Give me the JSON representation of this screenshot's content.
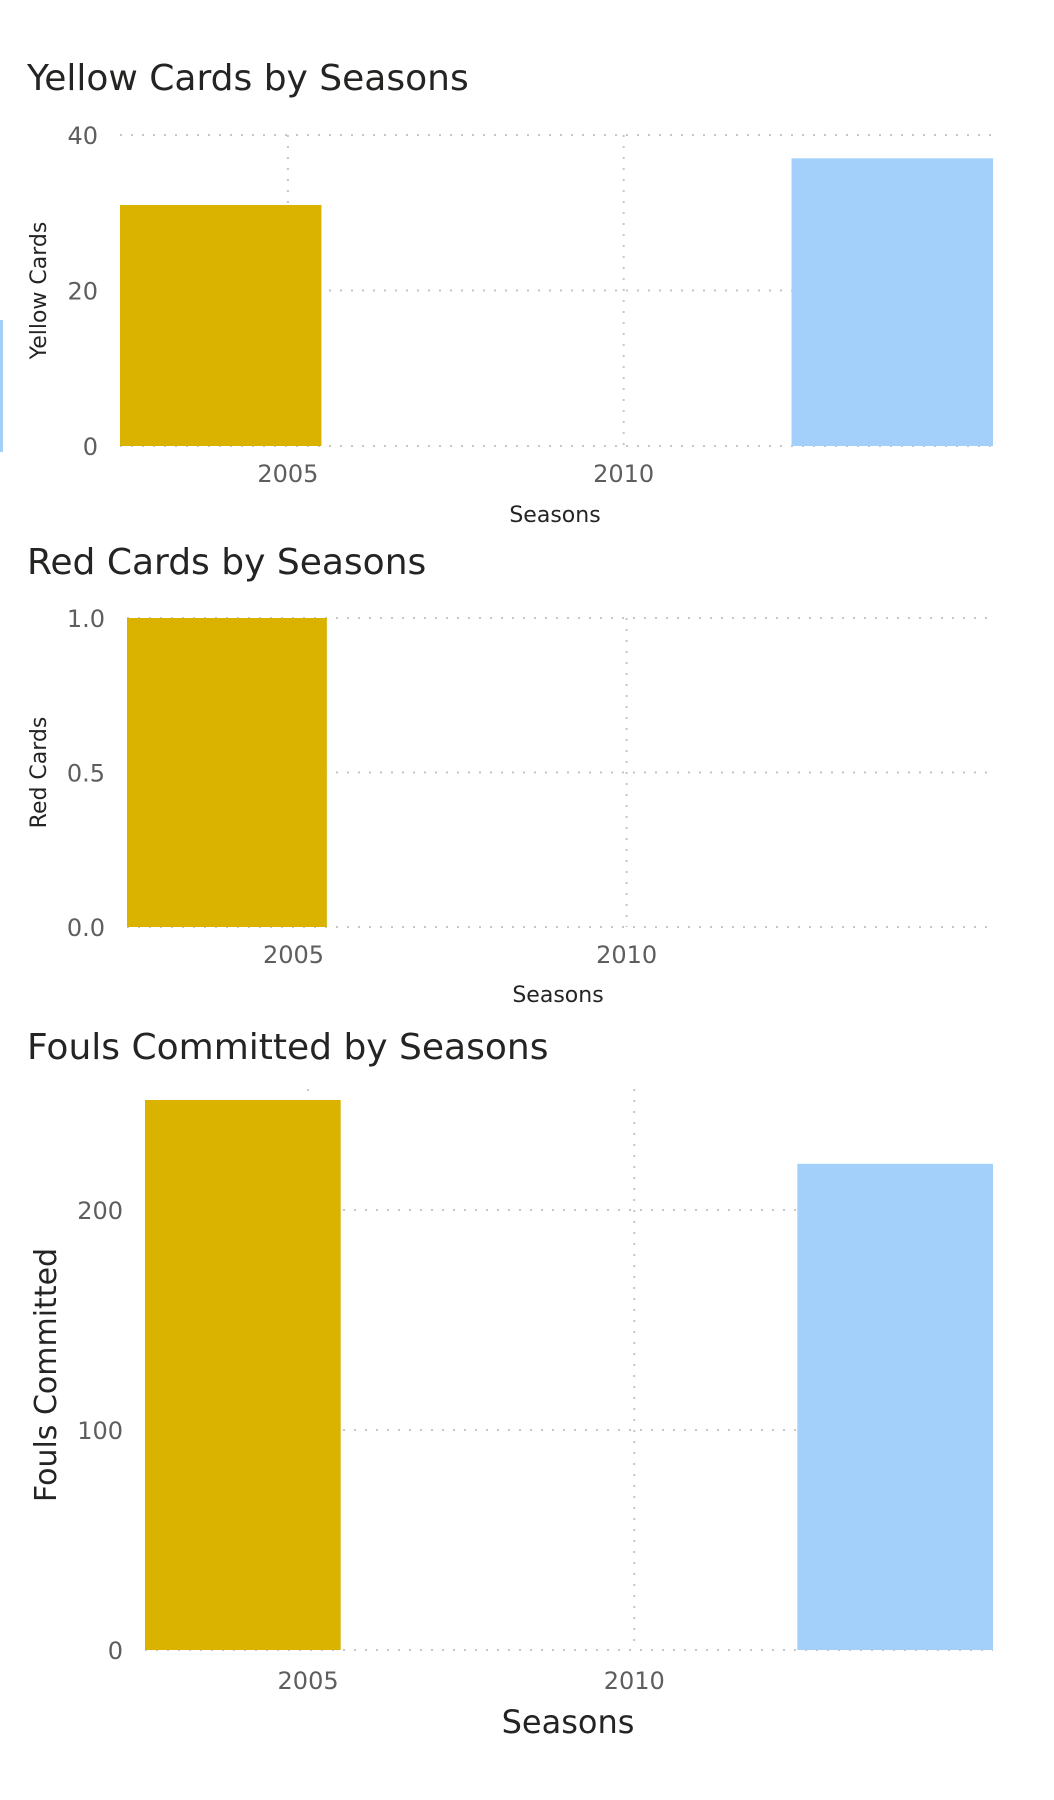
{
  "chart_data": [
    {
      "type": "bar",
      "title": "Yellow Cards by Seasons",
      "xlabel": "Seasons",
      "ylabel": "Yellow Cards",
      "xticks": [
        "2005",
        "2010"
      ],
      "yticks": [
        "0",
        "20",
        "40"
      ],
      "ylim": [
        0,
        40
      ],
      "grid": true,
      "series": [
        {
          "x_start": 2002.5,
          "x_end": 2005.5,
          "value": 31,
          "color": "#d9b300"
        },
        {
          "x_start": 2012.5,
          "x_end": 2015.5,
          "value": 37,
          "color": "#a3d0fb"
        }
      ]
    },
    {
      "type": "bar",
      "title": "Red Cards by Seasons",
      "xlabel": "Seasons",
      "ylabel": "Red Cards",
      "xticks": [
        "2005",
        "2010"
      ],
      "yticks": [
        "0.0",
        "0.5",
        "1.0"
      ],
      "ylim": [
        0,
        1
      ],
      "grid": true,
      "series": [
        {
          "x_start": 2002.5,
          "x_end": 2005.5,
          "value": 1,
          "color": "#d9b300"
        }
      ]
    },
    {
      "type": "bar",
      "title": "Fouls Committed by Seasons",
      "xlabel": "Seasons",
      "ylabel": "Fouls Committed",
      "xticks": [
        "2005",
        "2010"
      ],
      "yticks": [
        "0",
        "100",
        "200"
      ],
      "ylim": [
        0,
        250
      ],
      "grid": true,
      "series": [
        {
          "x_start": 2002.5,
          "x_end": 2005.5,
          "value": 250,
          "color": "#d9b300"
        },
        {
          "x_start": 2012.5,
          "x_end": 2015.5,
          "value": 221,
          "color": "#a3d0fb"
        }
      ]
    }
  ]
}
